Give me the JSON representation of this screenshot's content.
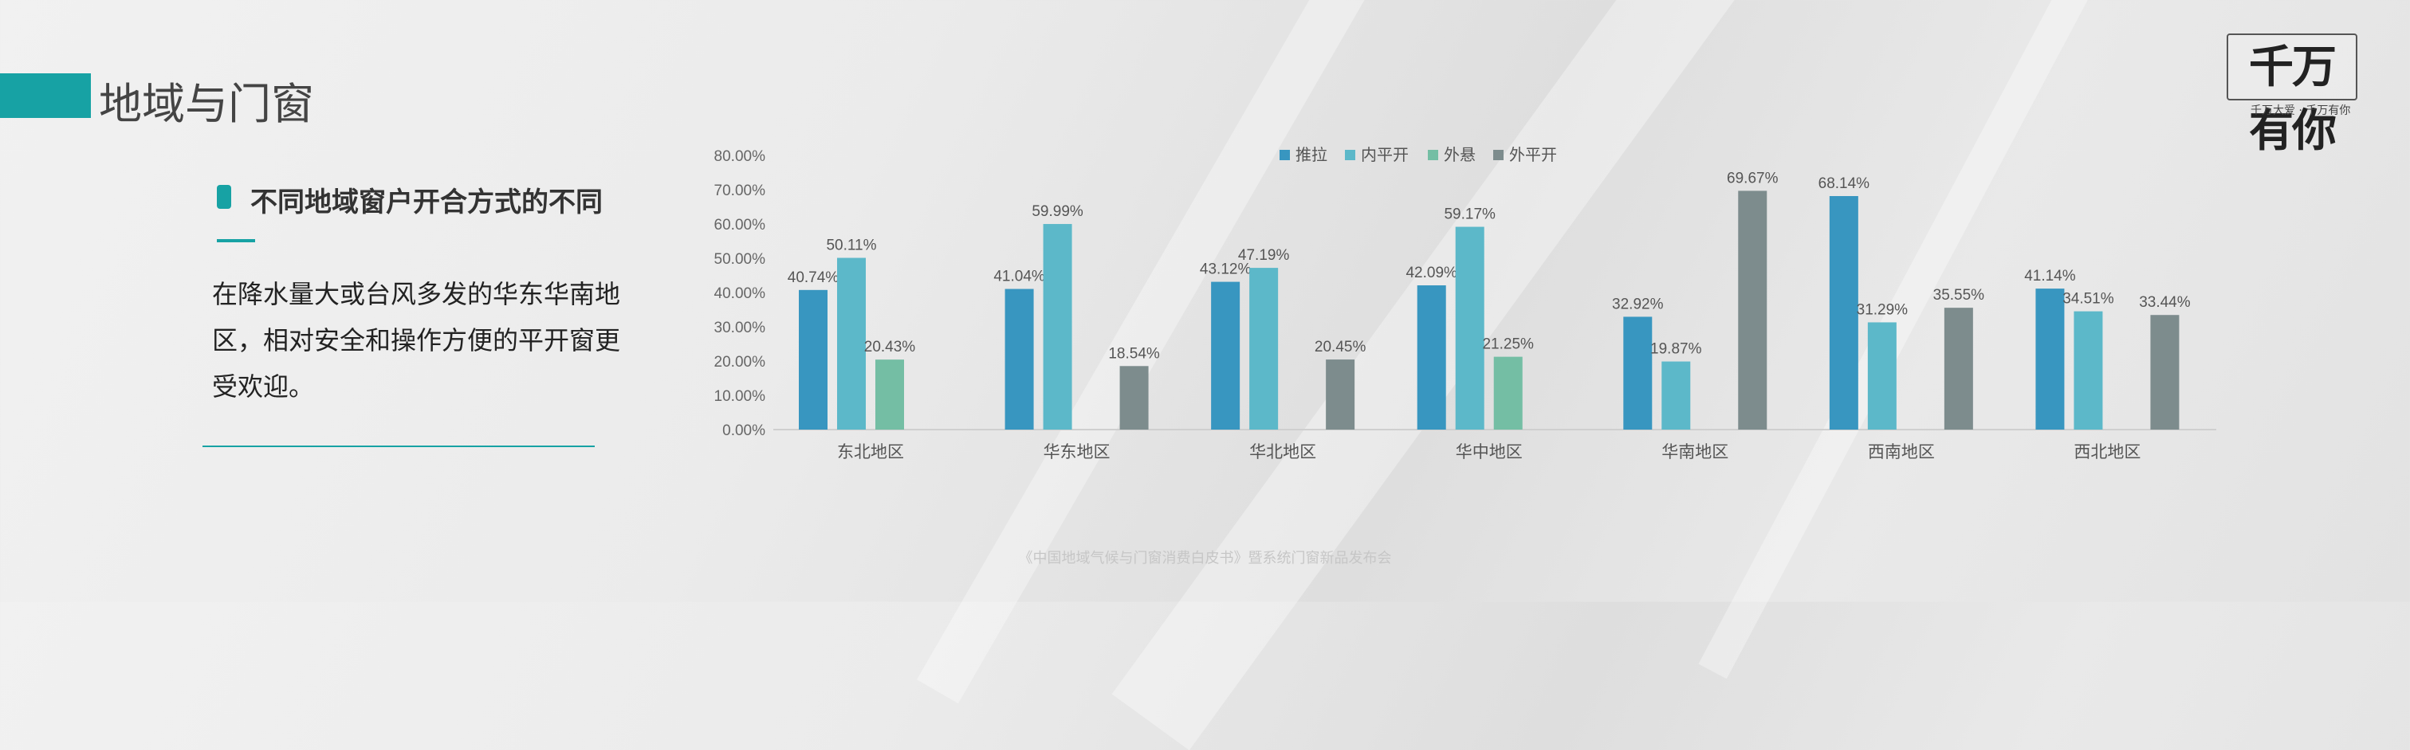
{
  "header": {
    "title": "地域与门窗",
    "accent_color": "#17a2a4"
  },
  "logo": {
    "main": "千万有你",
    "sub": "千万大爱 · 千万有你"
  },
  "section": {
    "subtitle": "不同地域窗户开合方式的不同",
    "body": "在降水量大或台风多发的华东华南地区，相对安全和操作方便的平开窗更受欢迎。"
  },
  "footer": {
    "text": "《中国地域气候与门窗消费白皮书》暨系统门窗新品发布会"
  },
  "chart_data": {
    "type": "bar",
    "categories": [
      "东北地区",
      "华东地区",
      "华北地区",
      "华中地区",
      "华南地区",
      "西南地区",
      "西北地区"
    ],
    "series": [
      {
        "name": "推拉",
        "color": "#3896c0",
        "values": [
          40.74,
          41.04,
          43.12,
          42.09,
          32.92,
          68.14,
          41.14
        ]
      },
      {
        "name": "内平开",
        "color": "#5cb8c9",
        "values": [
          50.11,
          59.99,
          47.19,
          59.17,
          19.87,
          31.29,
          34.51
        ]
      },
      {
        "name": "外悬",
        "color": "#74bea4",
        "values": [
          20.43,
          null,
          null,
          21.25,
          null,
          null,
          null
        ]
      },
      {
        "name": "外平开",
        "color": "#7d8c8d",
        "values": [
          null,
          18.54,
          20.45,
          null,
          69.67,
          35.55,
          33.44
        ]
      }
    ],
    "labels": [
      [
        "40.74%",
        "50.11%",
        "20.43%",
        null
      ],
      [
        "41.04%",
        "59.99%",
        null,
        "18.54%"
      ],
      [
        "43.12%",
        "47.19%",
        null,
        "20.45%"
      ],
      [
        "42.09%",
        "59.17%",
        "21.25%",
        null
      ],
      [
        "32.92%",
        "19.87%",
        null,
        "69.67%"
      ],
      [
        "68.14%",
        "31.29%",
        null,
        "35.55%"
      ],
      [
        "41.14%",
        "34.51%",
        null,
        "33.44%"
      ]
    ],
    "ylim": [
      0,
      80
    ],
    "yticks": [
      "0.00%",
      "10.00%",
      "20.00%",
      "30.00%",
      "40.00%",
      "50.00%",
      "60.00%",
      "70.00%",
      "80.00%"
    ],
    "legend_position": "top",
    "grid": false
  }
}
